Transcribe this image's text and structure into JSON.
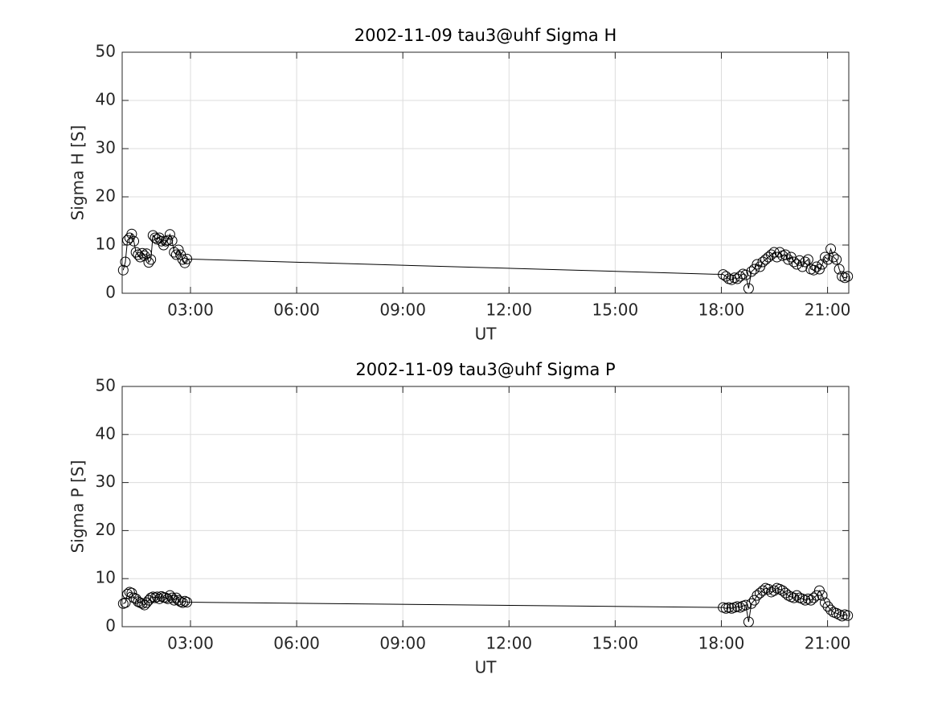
{
  "chart_data": [
    {
      "type": "line",
      "title": "2002-11-09  tau3@uhf Sigma H",
      "xlabel": "UT",
      "ylabel": "Sigma H [S]",
      "color": "#000000",
      "marker": "circle",
      "grid": true,
      "xlim": [
        1.07,
        21.6
      ],
      "ylim": [
        0,
        50
      ],
      "xticks": [
        {
          "value": 3,
          "label": "03:00"
        },
        {
          "value": 6,
          "label": "06:00"
        },
        {
          "value": 9,
          "label": "09:00"
        },
        {
          "value": 12,
          "label": "12:00"
        },
        {
          "value": 15,
          "label": "15:00"
        },
        {
          "value": 18,
          "label": "18:00"
        },
        {
          "value": 21,
          "label": "21:00"
        }
      ],
      "yticks": [
        0,
        10,
        20,
        30,
        40,
        50
      ],
      "x": [
        1.1,
        1.16,
        1.22,
        1.28,
        1.34,
        1.4,
        1.46,
        1.52,
        1.58,
        1.64,
        1.7,
        1.76,
        1.82,
        1.88,
        1.94,
        2,
        2.06,
        2.12,
        2.18,
        2.24,
        2.3,
        2.36,
        2.42,
        2.48,
        2.54,
        2.6,
        2.66,
        2.72,
        2.78,
        2.84,
        2.9,
        18.05,
        18.13,
        18.21,
        18.29,
        18.37,
        18.45,
        18.53,
        18.61,
        18.69,
        18.77,
        18.85,
        18.93,
        19.01,
        19.09,
        19.17,
        19.25,
        19.33,
        19.41,
        19.49,
        19.57,
        19.65,
        19.73,
        19.81,
        19.89,
        19.97,
        20.05,
        20.13,
        20.21,
        20.29,
        20.37,
        20.45,
        20.53,
        20.61,
        20.69,
        20.77,
        20.85,
        20.93,
        21.01,
        21.09,
        21.17,
        21.25,
        21.33,
        21.41,
        21.49,
        21.57
      ],
      "values": [
        4.8,
        6.5,
        11,
        11.5,
        12.3,
        10.8,
        8.5,
        8,
        7.5,
        8.3,
        7.8,
        8.2,
        6.4,
        7,
        12,
        11.5,
        11.2,
        11.5,
        10.8,
        10,
        10.8,
        11,
        12.2,
        10.9,
        8.5,
        8,
        9,
        8,
        7,
        6.3,
        7.1,
        3.9,
        3.5,
        3,
        2.8,
        3.2,
        3,
        3.5,
        4,
        3.8,
        1,
        4.5,
        5,
        6,
        5.5,
        6.5,
        7,
        7.5,
        8,
        8.5,
        7.5,
        8.5,
        7.8,
        8,
        7,
        7.5,
        6.5,
        6,
        6.8,
        5.5,
        6.5,
        7,
        5,
        4.8,
        5.5,
        5,
        6,
        7.5,
        7,
        9.2,
        7.5,
        7,
        5,
        3.5,
        3.2,
        3.5
      ]
    },
    {
      "type": "line",
      "title": "2002-11-09  tau3@uhf Sigma P",
      "xlabel": "UT",
      "ylabel": "Sigma P [S]",
      "color": "#000000",
      "marker": "circle",
      "grid": true,
      "xlim": [
        1.07,
        21.6
      ],
      "ylim": [
        0,
        50
      ],
      "xticks": [
        {
          "value": 3,
          "label": "03:00"
        },
        {
          "value": 6,
          "label": "06:00"
        },
        {
          "value": 9,
          "label": "09:00"
        },
        {
          "value": 12,
          "label": "12:00"
        },
        {
          "value": 15,
          "label": "15:00"
        },
        {
          "value": 18,
          "label": "18:00"
        },
        {
          "value": 21,
          "label": "21:00"
        }
      ],
      "yticks": [
        0,
        10,
        20,
        30,
        40,
        50
      ],
      "x": [
        1.1,
        1.16,
        1.22,
        1.28,
        1.34,
        1.4,
        1.46,
        1.52,
        1.58,
        1.64,
        1.7,
        1.76,
        1.82,
        1.88,
        1.94,
        2,
        2.06,
        2.12,
        2.18,
        2.24,
        2.3,
        2.36,
        2.42,
        2.48,
        2.54,
        2.6,
        2.66,
        2.72,
        2.78,
        2.84,
        2.9,
        18.05,
        18.13,
        18.21,
        18.29,
        18.37,
        18.45,
        18.53,
        18.61,
        18.69,
        18.77,
        18.85,
        18.93,
        19.01,
        19.09,
        19.17,
        19.25,
        19.33,
        19.41,
        19.49,
        19.57,
        19.65,
        19.73,
        19.81,
        19.89,
        19.97,
        20.05,
        20.13,
        20.21,
        20.29,
        20.37,
        20.45,
        20.53,
        20.61,
        20.69,
        20.77,
        20.85,
        20.93,
        21.01,
        21.09,
        21.17,
        21.25,
        21.33,
        21.41,
        21.49,
        21.57
      ],
      "values": [
        4.8,
        5,
        6.8,
        7.2,
        7,
        6,
        5.8,
        5.2,
        5,
        4.8,
        4.5,
        5,
        5.5,
        6,
        6.2,
        6,
        6.2,
        5.8,
        6.3,
        6.1,
        6,
        5.8,
        6.5,
        6,
        5.5,
        6,
        5.5,
        5.2,
        5,
        5.3,
        5.1,
        4,
        3.8,
        4,
        3.8,
        4,
        4.2,
        4,
        4.3,
        4.5,
        1,
        4.8,
        5.5,
        6.5,
        7,
        7.5,
        8,
        7.8,
        7.2,
        7.5,
        8,
        7.8,
        7.5,
        7,
        6.5,
        6.2,
        6,
        6.5,
        6,
        5.8,
        5.5,
        5.8,
        5.5,
        6,
        6.5,
        7.5,
        6.5,
        5,
        4.2,
        3.5,
        3,
        2.8,
        2.5,
        2.2,
        2.5,
        2.3
      ]
    }
  ]
}
